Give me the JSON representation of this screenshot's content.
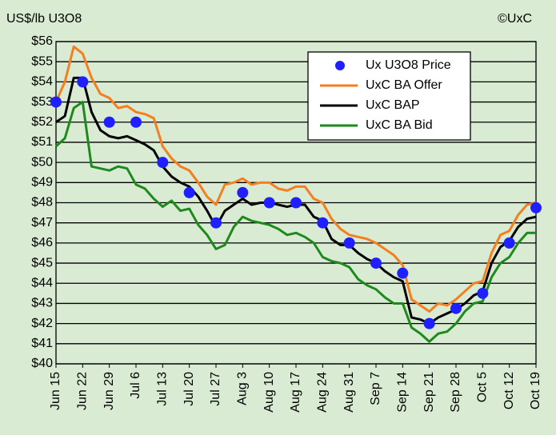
{
  "chart_data": {
    "type": "line",
    "y_axis_label": "US$/lb U3O8",
    "credit": "©UxC",
    "categories": [
      "Jun 15",
      null,
      null,
      "Jun 22",
      null,
      null,
      "Jun 29",
      null,
      null,
      "Jul 6",
      null,
      null,
      "Jul 13",
      null,
      null,
      "Jul 20",
      null,
      null,
      "Jul 27",
      null,
      null,
      "Aug 3",
      null,
      null,
      "Aug 10",
      null,
      null,
      "Aug 17",
      null,
      null,
      "Aug 24",
      null,
      null,
      "Aug 31",
      null,
      null,
      "Sep 7",
      null,
      null,
      "Sep 14",
      null,
      null,
      "Sep 21",
      null,
      null,
      "Sep 28",
      null,
      null,
      "Oct 5",
      null,
      null,
      "Oct 12",
      null,
      null,
      "Oct 19"
    ],
    "series": [
      {
        "name": "Ux U3O8 Price",
        "color": "#1f1fff",
        "mode": "markers",
        "values": [
          53,
          null,
          null,
          54,
          null,
          null,
          52,
          null,
          null,
          52,
          null,
          null,
          50,
          null,
          null,
          48.5,
          null,
          null,
          47,
          null,
          null,
          48.5,
          null,
          null,
          48,
          null,
          null,
          48,
          null,
          null,
          47,
          null,
          null,
          46,
          null,
          null,
          45,
          null,
          null,
          44.5,
          null,
          null,
          42,
          null,
          null,
          42.75,
          null,
          null,
          43.5,
          null,
          null,
          46,
          null,
          null,
          47.75
        ]
      },
      {
        "name": "UxC BA Offer",
        "color": "#f57f20",
        "mode": "lines",
        "values": [
          53,
          54,
          55.75,
          55.4,
          54.2,
          53.4,
          53.2,
          52.7,
          52.8,
          52.5,
          52.4,
          52.2,
          50.8,
          50.2,
          49.8,
          49.6,
          49.0,
          48.3,
          47.9,
          48.9,
          49.0,
          49.2,
          48.9,
          49.0,
          49.0,
          48.7,
          48.6,
          48.8,
          48.8,
          48.2,
          48.0,
          47.2,
          46.7,
          46.4,
          46.3,
          46.2,
          46.0,
          45.7,
          45.4,
          44.9,
          43.2,
          42.9,
          42.6,
          43.0,
          42.9,
          43.2,
          43.6,
          44.0,
          44.1,
          45.5,
          46.4,
          46.6,
          47.4,
          47.9,
          48.0
        ]
      },
      {
        "name": "UxC BAP",
        "color": "#000000",
        "mode": "lines",
        "values": [
          52.0,
          52.3,
          54.2,
          54.2,
          52.5,
          51.6,
          51.3,
          51.2,
          51.3,
          51.1,
          50.9,
          50.6,
          49.8,
          49.3,
          49.0,
          48.8,
          48.3,
          47.6,
          46.8,
          47.6,
          47.9,
          48.2,
          47.9,
          48.0,
          48.0,
          47.9,
          47.8,
          47.9,
          47.9,
          47.3,
          47.1,
          46.2,
          45.9,
          45.9,
          45.5,
          45.2,
          45.0,
          44.6,
          44.3,
          44.1,
          42.3,
          42.2,
          42.0,
          42.3,
          42.5,
          42.7,
          43.0,
          43.4,
          43.6,
          45.0,
          45.8,
          46.1,
          46.8,
          47.2,
          47.3
        ]
      },
      {
        "name": "UxC BA Bid",
        "color": "#1e8a1e",
        "mode": "lines",
        "values": [
          50.8,
          51.2,
          52.7,
          53.0,
          49.8,
          49.7,
          49.6,
          49.8,
          49.7,
          48.9,
          48.7,
          48.2,
          47.8,
          48.1,
          47.6,
          47.7,
          46.9,
          46.4,
          45.7,
          45.9,
          46.8,
          47.3,
          47.1,
          47.0,
          46.9,
          46.7,
          46.4,
          46.5,
          46.3,
          46.0,
          45.3,
          45.1,
          45.0,
          44.8,
          44.2,
          43.9,
          43.7,
          43.3,
          43.0,
          43.0,
          41.8,
          41.5,
          41.1,
          41.5,
          41.6,
          42.0,
          42.6,
          43.0,
          43.1,
          44.3,
          45.0,
          45.3,
          46.0,
          46.5,
          46.5
        ]
      }
    ],
    "ylim": [
      40,
      56
    ],
    "yticks": [
      {
        "value": 40,
        "label": "$40"
      },
      {
        "value": 41,
        "label": "$41"
      },
      {
        "value": 42,
        "label": "$42"
      },
      {
        "value": 43,
        "label": "$43"
      },
      {
        "value": 44,
        "label": "$44"
      },
      {
        "value": 45,
        "label": "$45"
      },
      {
        "value": 46,
        "label": "$46"
      },
      {
        "value": 47,
        "label": "$47"
      },
      {
        "value": 48,
        "label": "$48"
      },
      {
        "value": 49,
        "label": "$49"
      },
      {
        "value": 50,
        "label": "$50"
      },
      {
        "value": 51,
        "label": "$51"
      },
      {
        "value": 52,
        "label": "$52"
      },
      {
        "value": 53,
        "label": "$53"
      },
      {
        "value": 54,
        "label": "$54"
      },
      {
        "value": 55,
        "label": "$55"
      },
      {
        "value": 56,
        "label": "$56"
      }
    ],
    "grid": true,
    "legend": "upper right"
  }
}
